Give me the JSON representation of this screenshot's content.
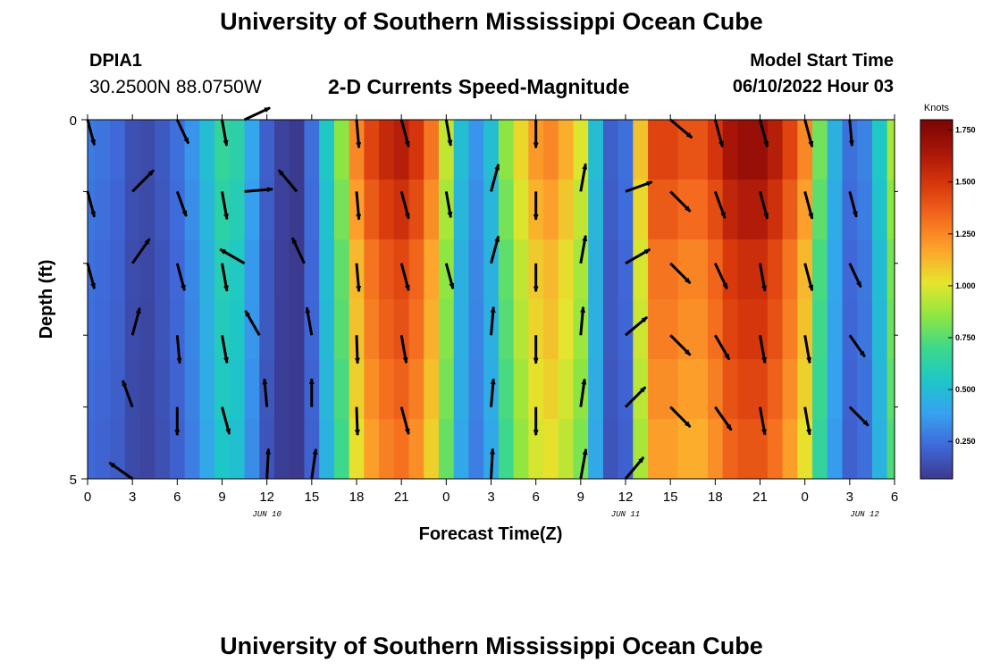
{
  "header": {
    "title": "University of Southern Mississippi Ocean Cube",
    "station_id": "DPIA1",
    "coords": "30.2500N  88.0750W",
    "subtitle": "2-D Currents Speed-Magnitude",
    "model_start_label": "Model Start Time",
    "model_start_value": "06/10/2022 Hour 03"
  },
  "footer": {
    "title": "University of Southern Mississippi Ocean Cube"
  },
  "colors": {
    "colormap": [
      "#3b3a8f",
      "#3f68d8",
      "#36a2f0",
      "#1dc7c7",
      "#3dd88a",
      "#8fe640",
      "#e5e52c",
      "#fda52c",
      "#f46b1e",
      "#d8380c",
      "#a81608",
      "#7a0404"
    ],
    "arrow": "#000000"
  },
  "chart_data": {
    "type": "heatmap",
    "xlabel": "Forecast Time(Z)",
    "ylabel": "Depth (ft)",
    "x_ticks": [
      "0",
      "3",
      "6",
      "9",
      "12",
      "15",
      "18",
      "21",
      "0",
      "3",
      "6",
      "9",
      "12",
      "15",
      "18",
      "21",
      "0",
      "3",
      "6"
    ],
    "date_labels": [
      "JUN 10",
      "JUN 11",
      "JUN 12"
    ],
    "date_label_hours": [
      12,
      36,
      52
    ],
    "y_ticks": [
      "0",
      "5"
    ],
    "ylim": [
      0,
      5
    ],
    "xlim_hours": [
      0,
      54
    ],
    "colorbar": {
      "label": "Knots",
      "ticks": [
        "0.250",
        "0.500",
        "0.750",
        "1.000",
        "1.250",
        "1.500",
        "1.750"
      ],
      "tick_values": [
        0.25,
        0.5,
        0.75,
        1.0,
        1.25,
        1.5,
        1.75
      ],
      "range": [
        0.07,
        1.8
      ]
    },
    "column_hours": [
      0,
      1,
      2,
      3,
      4,
      5,
      6,
      7,
      8,
      9,
      10,
      11,
      12,
      13,
      14,
      15,
      16,
      17,
      18,
      19,
      20,
      21,
      22,
      23,
      24,
      25,
      26,
      27,
      28,
      29,
      30,
      31,
      32,
      33,
      34,
      35,
      36,
      37,
      38,
      39,
      40,
      41,
      42,
      43,
      44,
      45,
      46,
      47,
      48,
      49,
      50,
      51,
      52,
      53,
      54
    ],
    "speed_knots_surface": [
      0.28,
      0.26,
      0.23,
      0.15,
      0.13,
      0.18,
      0.25,
      0.35,
      0.5,
      0.66,
      0.62,
      0.4,
      0.2,
      0.1,
      0.07,
      0.25,
      0.55,
      0.85,
      1.25,
      1.45,
      1.55,
      1.6,
      1.5,
      1.3,
      0.95,
      0.5,
      0.35,
      0.5,
      0.85,
      1.05,
      1.2,
      1.25,
      1.15,
      1.0,
      0.5,
      0.2,
      0.25,
      1.1,
      1.45,
      1.45,
      1.4,
      1.4,
      1.5,
      1.65,
      1.7,
      1.7,
      1.6,
      1.45,
      1.25,
      0.8,
      0.45,
      0.25,
      0.3,
      0.55,
      0.9
    ],
    "depth_factor": [
      1.0,
      0.95,
      0.9,
      0.88,
      0.85,
      0.82
    ],
    "vectors": [
      {
        "hour": 0,
        "depth": 0.0,
        "dir_deg": 165,
        "mag": 0.7
      },
      {
        "hour": 0,
        "depth": 1.0,
        "dir_deg": 165,
        "mag": 0.7
      },
      {
        "hour": 0,
        "depth": 2.0,
        "dir_deg": 165,
        "mag": 0.7
      },
      {
        "hour": 3,
        "depth": 1.0,
        "dir_deg": 45,
        "mag": 0.8
      },
      {
        "hour": 3,
        "depth": 2.0,
        "dir_deg": 35,
        "mag": 0.8
      },
      {
        "hour": 3,
        "depth": 3.0,
        "dir_deg": 15,
        "mag": 0.75
      },
      {
        "hour": 3,
        "depth": 4.0,
        "dir_deg": 340,
        "mag": 0.75
      },
      {
        "hour": 3,
        "depth": 5.0,
        "dir_deg": 305,
        "mag": 0.75
      },
      {
        "hour": 6,
        "depth": 0.0,
        "dir_deg": 155,
        "mag": 0.7
      },
      {
        "hour": 6,
        "depth": 1.0,
        "dir_deg": 160,
        "mag": 0.7
      },
      {
        "hour": 6,
        "depth": 2.0,
        "dir_deg": 165,
        "mag": 0.75
      },
      {
        "hour": 6,
        "depth": 3.0,
        "dir_deg": 175,
        "mag": 0.75
      },
      {
        "hour": 6,
        "depth": 4.0,
        "dir_deg": 180,
        "mag": 0.75
      },
      {
        "hour": 9,
        "depth": 0.0,
        "dir_deg": 170,
        "mag": 0.7
      },
      {
        "hour": 9,
        "depth": 1.0,
        "dir_deg": 170,
        "mag": 0.75
      },
      {
        "hour": 9,
        "depth": 2.0,
        "dir_deg": 170,
        "mag": 0.75
      },
      {
        "hour": 9,
        "depth": 3.0,
        "dir_deg": 170,
        "mag": 0.75
      },
      {
        "hour": 9,
        "depth": 4.0,
        "dir_deg": 165,
        "mag": 0.75
      },
      {
        "hour": 10.5,
        "depth": 0.0,
        "dir_deg": 65,
        "mag": 0.75
      },
      {
        "hour": 10.5,
        "depth": 1.0,
        "dir_deg": 85,
        "mag": 0.75
      },
      {
        "hour": 10.5,
        "depth": 2.0,
        "dir_deg": 300,
        "mag": 0.75
      },
      {
        "hour": 11.5,
        "depth": 3.0,
        "dir_deg": 330,
        "mag": 0.75
      },
      {
        "hour": 12,
        "depth": 4.0,
        "dir_deg": 355,
        "mag": 0.75
      },
      {
        "hour": 12,
        "depth": 5.0,
        "dir_deg": 3,
        "mag": 0.8
      },
      {
        "hour": 14,
        "depth": 1.0,
        "dir_deg": 320,
        "mag": 0.75
      },
      {
        "hour": 14.5,
        "depth": 2.0,
        "dir_deg": 335,
        "mag": 0.75
      },
      {
        "hour": 15,
        "depth": 3.0,
        "dir_deg": 350,
        "mag": 0.75
      },
      {
        "hour": 15,
        "depth": 4.0,
        "dir_deg": 0,
        "mag": 0.75
      },
      {
        "hour": 15,
        "depth": 5.0,
        "dir_deg": 8,
        "mag": 0.8
      },
      {
        "hour": 18,
        "depth": 0.0,
        "dir_deg": 175,
        "mag": 0.75
      },
      {
        "hour": 18,
        "depth": 1.0,
        "dir_deg": 175,
        "mag": 0.75
      },
      {
        "hour": 18,
        "depth": 2.0,
        "dir_deg": 175,
        "mag": 0.75
      },
      {
        "hour": 18,
        "depth": 3.0,
        "dir_deg": 178,
        "mag": 0.75
      },
      {
        "hour": 18,
        "depth": 4.0,
        "dir_deg": 178,
        "mag": 0.75
      },
      {
        "hour": 21,
        "depth": 0.0,
        "dir_deg": 165,
        "mag": 0.75
      },
      {
        "hour": 21,
        "depth": 1.0,
        "dir_deg": 165,
        "mag": 0.75
      },
      {
        "hour": 21,
        "depth": 2.0,
        "dir_deg": 165,
        "mag": 0.75
      },
      {
        "hour": 21,
        "depth": 3.0,
        "dir_deg": 170,
        "mag": 0.75
      },
      {
        "hour": 21,
        "depth": 4.0,
        "dir_deg": 165,
        "mag": 0.75
      },
      {
        "hour": 24,
        "depth": 0.0,
        "dir_deg": 170,
        "mag": 0.7
      },
      {
        "hour": 24,
        "depth": 1.0,
        "dir_deg": 170,
        "mag": 0.7
      },
      {
        "hour": 24,
        "depth": 2.0,
        "dir_deg": 165,
        "mag": 0.7
      },
      {
        "hour": 27,
        "depth": 1.0,
        "dir_deg": 15,
        "mag": 0.75
      },
      {
        "hour": 27,
        "depth": 2.0,
        "dir_deg": 15,
        "mag": 0.75
      },
      {
        "hour": 27,
        "depth": 3.0,
        "dir_deg": 5,
        "mag": 0.75
      },
      {
        "hour": 27,
        "depth": 4.0,
        "dir_deg": 5,
        "mag": 0.75
      },
      {
        "hour": 27,
        "depth": 5.0,
        "dir_deg": 3,
        "mag": 0.8
      },
      {
        "hour": 30,
        "depth": 0.0,
        "dir_deg": 180,
        "mag": 0.75
      },
      {
        "hour": 30,
        "depth": 1.0,
        "dir_deg": 180,
        "mag": 0.75
      },
      {
        "hour": 30,
        "depth": 2.0,
        "dir_deg": 180,
        "mag": 0.75
      },
      {
        "hour": 30,
        "depth": 3.0,
        "dir_deg": 180,
        "mag": 0.75
      },
      {
        "hour": 30,
        "depth": 4.0,
        "dir_deg": 180,
        "mag": 0.75
      },
      {
        "hour": 33,
        "depth": 1.0,
        "dir_deg": 10,
        "mag": 0.75
      },
      {
        "hour": 33,
        "depth": 2.0,
        "dir_deg": 10,
        "mag": 0.75
      },
      {
        "hour": 33,
        "depth": 3.0,
        "dir_deg": 5,
        "mag": 0.75
      },
      {
        "hour": 33,
        "depth": 4.0,
        "dir_deg": 8,
        "mag": 0.75
      },
      {
        "hour": 33,
        "depth": 5.0,
        "dir_deg": 10,
        "mag": 0.8
      },
      {
        "hour": 36,
        "depth": 1.0,
        "dir_deg": 70,
        "mag": 0.75
      },
      {
        "hour": 36,
        "depth": 2.0,
        "dir_deg": 60,
        "mag": 0.75
      },
      {
        "hour": 36,
        "depth": 3.0,
        "dir_deg": 50,
        "mag": 0.75
      },
      {
        "hour": 36,
        "depth": 4.0,
        "dir_deg": 45,
        "mag": 0.75
      },
      {
        "hour": 36,
        "depth": 5.0,
        "dir_deg": 40,
        "mag": 0.75
      },
      {
        "hour": 39,
        "depth": 0.0,
        "dir_deg": 130,
        "mag": 0.75
      },
      {
        "hour": 39,
        "depth": 1.0,
        "dir_deg": 135,
        "mag": 0.75
      },
      {
        "hour": 39,
        "depth": 2.0,
        "dir_deg": 135,
        "mag": 0.75
      },
      {
        "hour": 39,
        "depth": 3.0,
        "dir_deg": 135,
        "mag": 0.75
      },
      {
        "hour": 39,
        "depth": 4.0,
        "dir_deg": 135,
        "mag": 0.75
      },
      {
        "hour": 42,
        "depth": 0.0,
        "dir_deg": 165,
        "mag": 0.75
      },
      {
        "hour": 42,
        "depth": 1.0,
        "dir_deg": 160,
        "mag": 0.75
      },
      {
        "hour": 42,
        "depth": 2.0,
        "dir_deg": 155,
        "mag": 0.75
      },
      {
        "hour": 42,
        "depth": 3.0,
        "dir_deg": 150,
        "mag": 0.75
      },
      {
        "hour": 42,
        "depth": 4.0,
        "dir_deg": 145,
        "mag": 0.75
      },
      {
        "hour": 45,
        "depth": 0.0,
        "dir_deg": 165,
        "mag": 0.75
      },
      {
        "hour": 45,
        "depth": 1.0,
        "dir_deg": 165,
        "mag": 0.75
      },
      {
        "hour": 45,
        "depth": 2.0,
        "dir_deg": 170,
        "mag": 0.75
      },
      {
        "hour": 45,
        "depth": 3.0,
        "dir_deg": 170,
        "mag": 0.75
      },
      {
        "hour": 45,
        "depth": 4.0,
        "dir_deg": 170,
        "mag": 0.75
      },
      {
        "hour": 48,
        "depth": 0.0,
        "dir_deg": 165,
        "mag": 0.75
      },
      {
        "hour": 48,
        "depth": 1.0,
        "dir_deg": 165,
        "mag": 0.75
      },
      {
        "hour": 48,
        "depth": 2.0,
        "dir_deg": 165,
        "mag": 0.75
      },
      {
        "hour": 48,
        "depth": 3.0,
        "dir_deg": 170,
        "mag": 0.75
      },
      {
        "hour": 48,
        "depth": 4.0,
        "dir_deg": 170,
        "mag": 0.75
      },
      {
        "hour": 51,
        "depth": 0.0,
        "dir_deg": 175,
        "mag": 0.7
      },
      {
        "hour": 51,
        "depth": 1.0,
        "dir_deg": 165,
        "mag": 0.7
      },
      {
        "hour": 51,
        "depth": 2.0,
        "dir_deg": 155,
        "mag": 0.7
      },
      {
        "hour": 51,
        "depth": 3.0,
        "dir_deg": 145,
        "mag": 0.7
      },
      {
        "hour": 51,
        "depth": 4.0,
        "dir_deg": 135,
        "mag": 0.7
      }
    ]
  }
}
